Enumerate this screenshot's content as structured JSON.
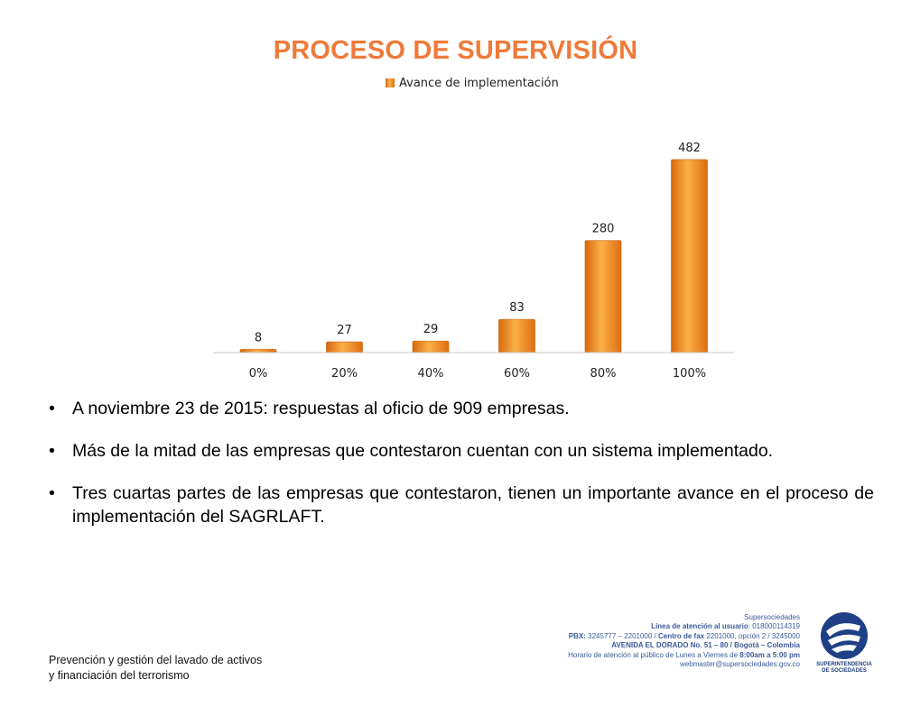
{
  "slide": {
    "title": "PROCESO DE SUPERVISIÓN"
  },
  "chart_data": {
    "type": "bar",
    "title": "",
    "categories": [
      "0%",
      "20%",
      "40%",
      "60%",
      "80%",
      "100%"
    ],
    "series": [
      {
        "name": "Avance de implementación",
        "values": [
          8,
          27,
          29,
          83,
          280,
          482
        ]
      }
    ],
    "xlabel": "",
    "ylabel": "",
    "ylim": [
      0,
      520
    ],
    "grid": false,
    "legend": "top",
    "colors": {
      "bar": "#f08a1e",
      "bar_light": "#fbc06a",
      "bar_dark": "#d8680c"
    }
  },
  "bullets": [
    "A noviembre 23 de 2015: respuestas al oficio de 909 empresas.",
    "Más de la mitad de las empresas que contestaron cuentan con un sistema implementado.",
    "Tres cuartas partes de las empresas que contestaron, tienen un importante avance en el proceso de implementación del SAGRLAFT."
  ],
  "footer": {
    "left_line1": "Prevención y gestión del lavado de activos",
    "left_line2": "y financiación del terrorismo",
    "org": "Supersociedades",
    "line_label": "Línea de atención al usuario",
    "line_value": ": 018000114319",
    "pbx_label": "PBX:",
    "pbx_value": " 3245777 – 2201000 / ",
    "fax_label": "Centro de fax",
    "fax_value": " 2201000, opción 2 / 3245000",
    "address": "AVENIDA EL DORADO No. 51 – 80 / Bogotá – Colombia",
    "hours_prefix": "Horario de atención al público de Lunes a Viernes de ",
    "hours_value": "8:00am a 5:00 pm",
    "email": "webmaster@supersociedades.gov.co",
    "logo_line1": "SUPERINTENDENCIA",
    "logo_line2": "DE SOCIEDADES"
  }
}
